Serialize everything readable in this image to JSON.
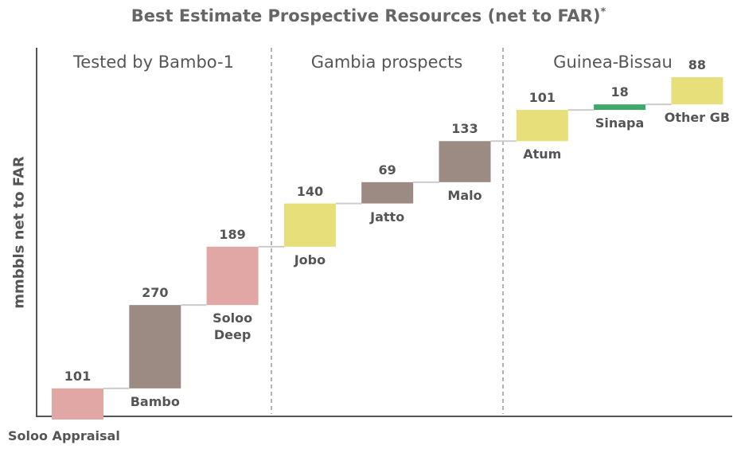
{
  "chart_data": {
    "type": "waterfall",
    "title": "Best Estimate Prospective Resources (net to FAR)",
    "title_marker": "*",
    "y_label": "mmbbls net to FAR",
    "sections": [
      "Tested by Bambo-1",
      "Gambia prospects",
      "Guinea-Bissau"
    ],
    "categories": [
      "Soloo Appraisal",
      "Bambo",
      "Soloo Deep",
      "Jobo",
      "Jatto",
      "Malo",
      "Atum",
      "Sinapa",
      "Other GB"
    ],
    "values": [
      101,
      270,
      189,
      140,
      69,
      133,
      101,
      18,
      88
    ],
    "colors": [
      "#e0a7a5",
      "#9c8b82",
      "#e0a7a5",
      "#e6df7a",
      "#9c8b82",
      "#9c8b82",
      "#e6df7a",
      "#3fa86a",
      "#e6df7a"
    ]
  }
}
